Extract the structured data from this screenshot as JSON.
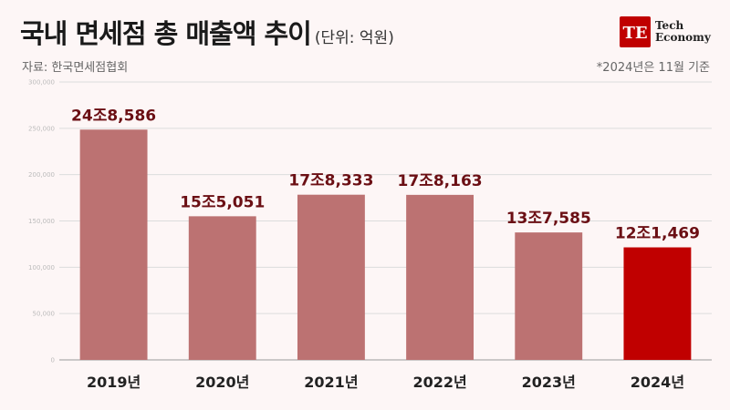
{
  "header": {
    "title": "국내 면세점 총 매출액 추이",
    "unit": "(단위: 억원)",
    "source": "자료: 한국면세점협회",
    "note": "*2024년은 11월 기준"
  },
  "logo": {
    "mark": "TE",
    "line1": "Tech",
    "line2": "Economy",
    "color": "#c00000"
  },
  "chart_data": {
    "type": "bar",
    "categories": [
      "2019년",
      "2020년",
      "2021년",
      "2022년",
      "2023년",
      "2024년"
    ],
    "values": [
      248586,
      155051,
      178333,
      178163,
      137585,
      121469
    ],
    "data_labels": [
      "24조8,586",
      "15조5,051",
      "17조8,333",
      "17조8,163",
      "13조7,585",
      "12조1,469"
    ],
    "yticks": [
      "0",
      "50,000",
      "100,000",
      "150,000",
      "200,000",
      "250,000",
      "300,000"
    ],
    "ylim": [
      0,
      300000
    ],
    "grid": true,
    "colors": {
      "bar": "#bc7272",
      "highlight": "#c00000",
      "highlight_index": 5
    }
  }
}
